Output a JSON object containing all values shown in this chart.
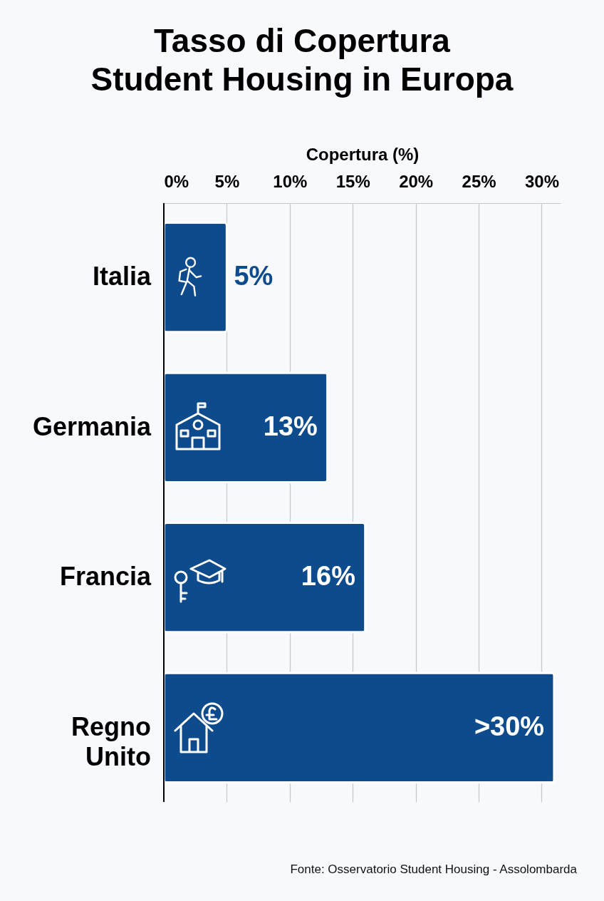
{
  "chart_data": {
    "type": "bar",
    "orientation": "horizontal",
    "title": "Tasso di Copertura Student Housing in Europa",
    "xlabel": "Copertura (%)",
    "categories": [
      "Italia",
      "Germania",
      "Francia",
      "Regno Unito"
    ],
    "values": [
      5,
      13,
      16,
      31
    ],
    "value_labels": [
      "5%",
      "13%",
      "16%",
      ">30%"
    ],
    "color": "#0d4b8c",
    "xlim": [
      0,
      31.5
    ],
    "xticks": [
      {
        "value": 0,
        "label": "0%"
      },
      {
        "value": 5,
        "label": "5%"
      },
      {
        "value": 10,
        "label": "10%"
      },
      {
        "value": 15,
        "label": "15%"
      },
      {
        "value": 20,
        "label": "20%"
      },
      {
        "value": 25,
        "label": "25%"
      },
      {
        "value": 30,
        "label": "30%"
      }
    ],
    "grid": "x",
    "legend": false,
    "annotations": [
      "Fonte: Osservatorio Student Housing - Assolombarda"
    ]
  }
}
